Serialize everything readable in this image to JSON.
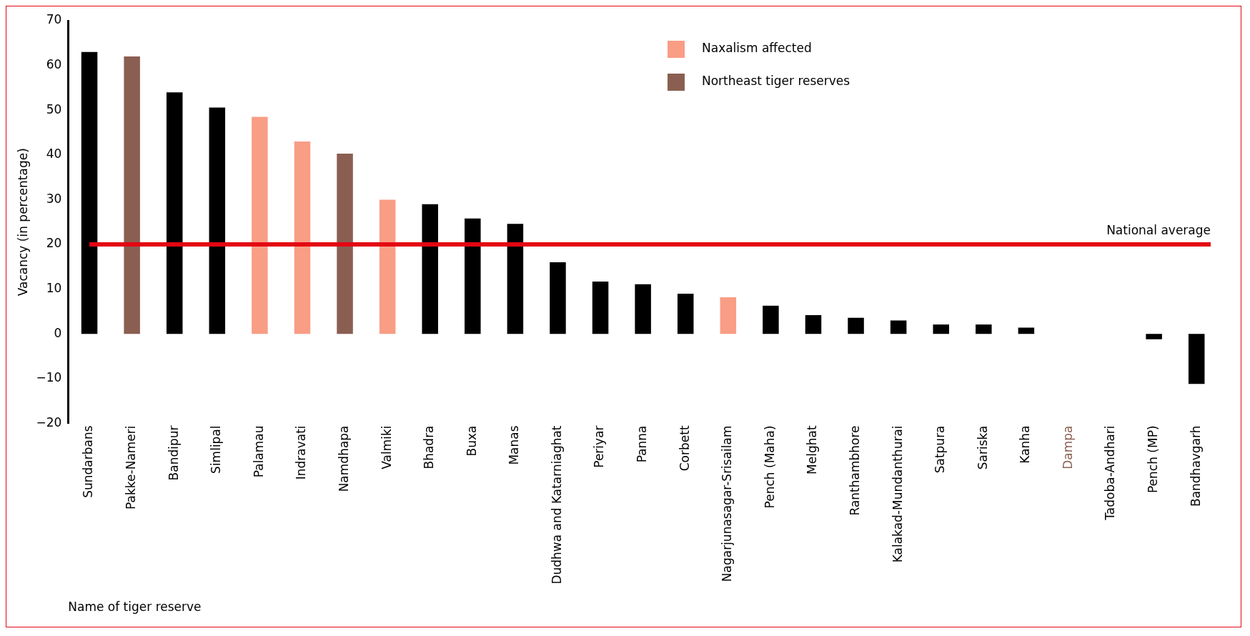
{
  "chart_data": {
    "type": "bar",
    "xlabel": "Name of tiger reserve",
    "ylabel": "Vacancy (in percentage)",
    "categories": [
      "Sundarbans",
      "Pakke-Nameri",
      "Bandipur",
      "Simlipal",
      "Palamau",
      "Indravati",
      "Namdhapa",
      "Valmiki",
      "Bhadra",
      "Buxa",
      "Manas",
      "Dudhwa and Katarniaghat",
      "Periyar",
      "Panna",
      "Corbett",
      "Nagarjunasagar-Srisailam",
      "Pench (Maha)",
      "Melghat",
      "Ranthambhore",
      "Kalakad-Mundanthurai",
      "Satpura",
      "Sariska",
      "Kanha",
      "Dampa",
      "Tadoba-Andhari",
      "Pench (MP)",
      "Bandhavgarh"
    ],
    "series": [
      {
        "color": "#000000",
        "values": [
          63,
          null,
          54,
          50.6,
          null,
          null,
          null,
          null,
          29,
          25.8,
          24.6,
          16,
          11.7,
          11.1,
          9,
          null,
          6.3,
          4.2,
          3.6,
          3,
          2.1,
          2.1,
          1.4,
          null,
          0,
          -1.2,
          -11.2
        ]
      },
      {
        "name": "Naxalism affected",
        "color": "#f99d85",
        "values": [
          null,
          null,
          null,
          null,
          48.5,
          43,
          null,
          30,
          null,
          null,
          null,
          null,
          null,
          null,
          null,
          8.2,
          null,
          null,
          null,
          null,
          null,
          null,
          null,
          null,
          null,
          null,
          null
        ]
      },
      {
        "name": "Northeast tiger reserves",
        "color": "#8a5f52",
        "values": [
          null,
          62,
          null,
          null,
          null,
          null,
          40.3,
          null,
          null,
          null,
          null,
          null,
          null,
          null,
          null,
          null,
          null,
          null,
          null,
          null,
          null,
          null,
          null,
          0,
          null,
          null,
          null
        ]
      }
    ],
    "ylim": [
      -20,
      70
    ],
    "yticks": [
      -20,
      -10,
      0,
      10,
      20,
      30,
      40,
      50,
      60,
      70
    ],
    "grid": false,
    "legend": "top right",
    "ref_lines": [
      {
        "axis": "y",
        "value": 20,
        "label": "National average",
        "color": "#e30613"
      }
    ]
  }
}
